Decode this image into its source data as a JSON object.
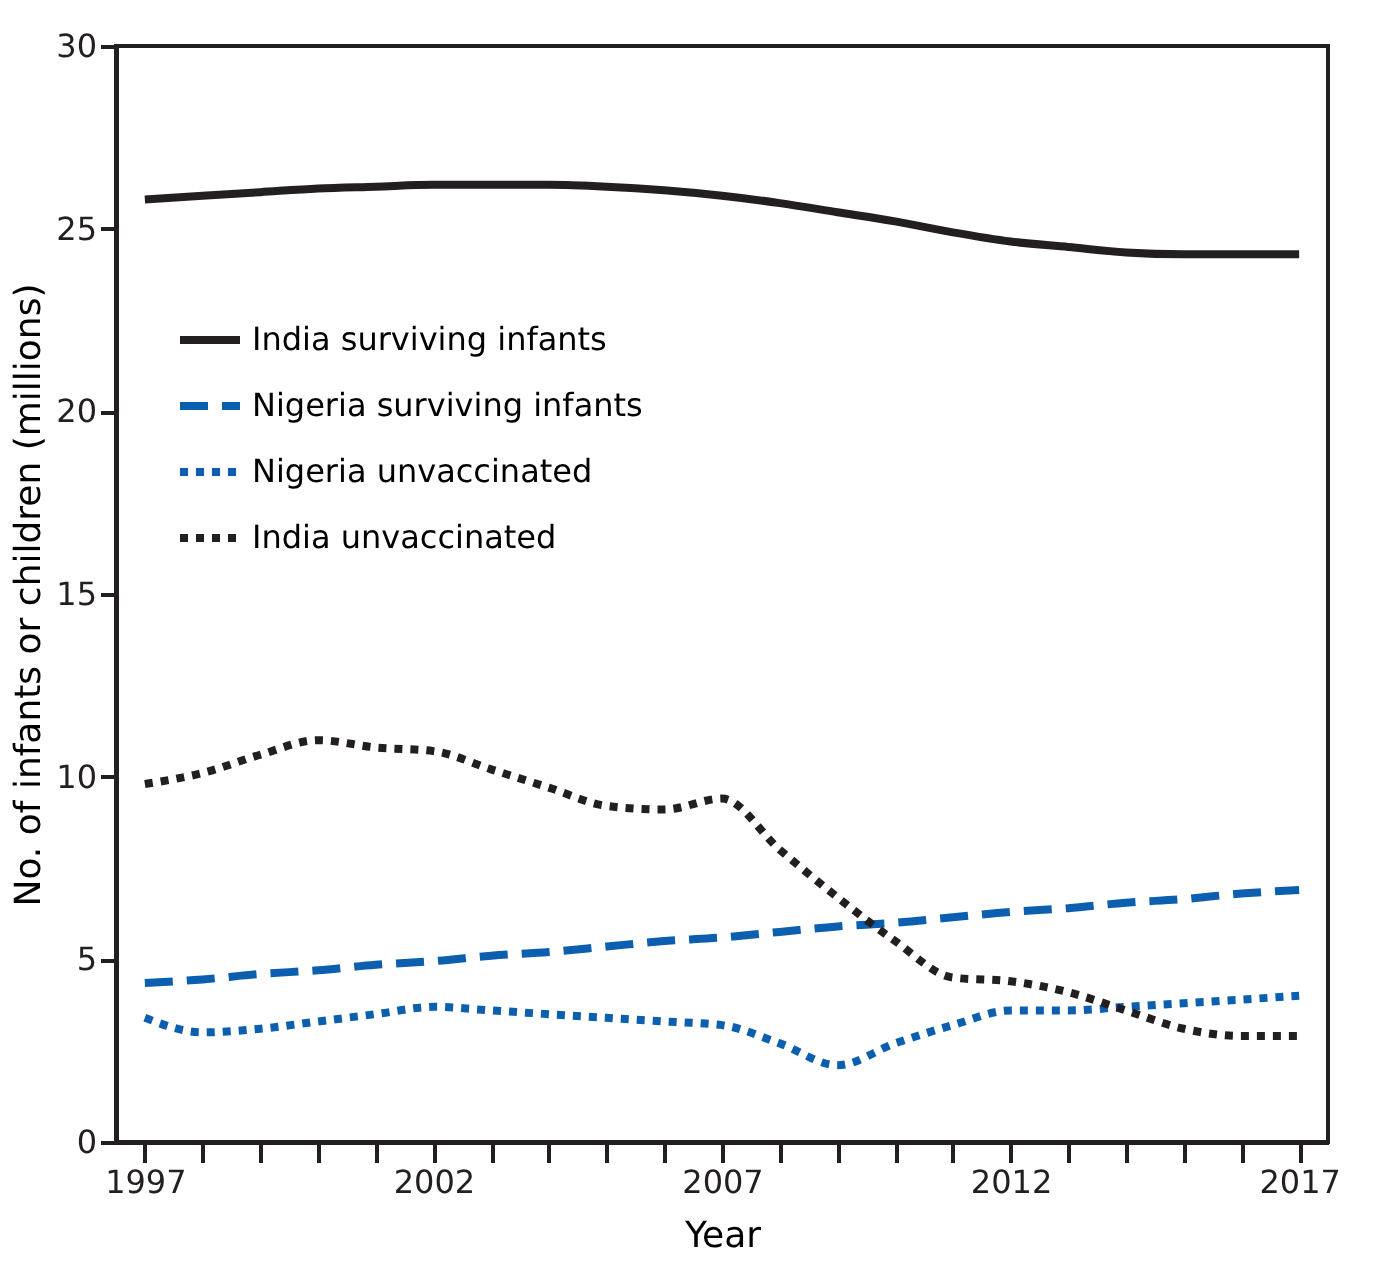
{
  "chart_data": {
    "type": "line",
    "xlabel": "Year",
    "ylabel": "No. of infants or children (millions)",
    "x": [
      1997,
      1998,
      1999,
      2000,
      2001,
      2002,
      2003,
      2004,
      2005,
      2006,
      2007,
      2008,
      2009,
      2010,
      2011,
      2012,
      2013,
      2014,
      2015,
      2016,
      2017
    ],
    "series": [
      {
        "name": "India surviving infants",
        "color": "#231f20",
        "line_style": "solid",
        "values": [
          25.8,
          25.9,
          26.0,
          26.1,
          26.15,
          26.2,
          26.2,
          26.2,
          26.15,
          26.05,
          25.9,
          25.7,
          25.45,
          25.2,
          24.9,
          24.65,
          24.5,
          24.35,
          24.3,
          24.3,
          24.3
        ]
      },
      {
        "name": "Nigeria surviving infants",
        "color": "#0b5fae",
        "line_style": "dashed",
        "values": [
          4.35,
          4.45,
          4.6,
          4.7,
          4.85,
          4.95,
          5.1,
          5.2,
          5.35,
          5.5,
          5.6,
          5.75,
          5.9,
          6.0,
          6.15,
          6.3,
          6.4,
          6.55,
          6.65,
          6.8,
          6.9
        ]
      },
      {
        "name": "Nigeria unvaccinated",
        "color": "#0b5fae",
        "line_style": "dotted",
        "values": [
          3.4,
          3.0,
          3.1,
          3.3,
          3.5,
          3.7,
          3.6,
          3.5,
          3.4,
          3.3,
          3.2,
          2.7,
          2.1,
          2.7,
          3.2,
          3.6,
          3.6,
          3.7,
          3.8,
          3.9,
          4.0
        ]
      },
      {
        "name": "India unvaccinated",
        "color": "#231f20",
        "line_style": "dotted",
        "values": [
          9.8,
          10.1,
          10.6,
          11.0,
          10.8,
          10.7,
          10.2,
          9.7,
          9.2,
          9.1,
          9.4,
          8.0,
          6.7,
          5.5,
          4.5,
          4.4,
          4.1,
          3.6,
          3.1,
          2.9,
          2.9
        ]
      }
    ],
    "xlim": [
      1996.5,
      2017.5
    ],
    "xticks": [
      1997,
      {
        "value": 1998,
        "label": null
      },
      {
        "value": 1999,
        "label": null
      },
      {
        "value": 2000,
        "label": null
      },
      {
        "value": 2001,
        "label": null
      },
      2002,
      {
        "value": 2003,
        "label": null
      },
      {
        "value": 2004,
        "label": null
      },
      {
        "value": 2005,
        "label": null
      },
      {
        "value": 2006,
        "label": null
      },
      2007,
      {
        "value": 2008,
        "label": null
      },
      {
        "value": 2009,
        "label": null
      },
      {
        "value": 2010,
        "label": null
      },
      {
        "value": 2011,
        "label": null
      },
      2012,
      {
        "value": 2013,
        "label": null
      },
      {
        "value": 2014,
        "label": null
      },
      {
        "value": 2015,
        "label": null
      },
      {
        "value": 2016,
        "label": null
      },
      2017
    ],
    "ylim": [
      0,
      30
    ],
    "yticks": [
      0,
      5,
      10,
      15,
      20,
      25,
      30
    ],
    "grid": false,
    "legend": "top left",
    "marker": "none"
  }
}
